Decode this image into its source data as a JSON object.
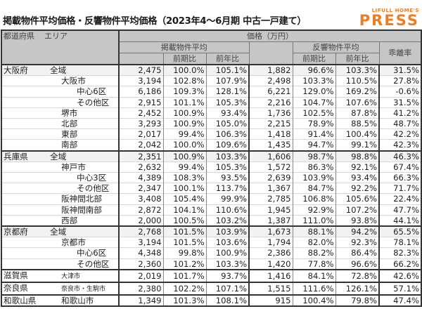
{
  "title": "掲載物件平均価格・反響物件平均価格（2023年4～6月期 中古一戸建て）",
  "logo": {
    "line1": "LIFULL HOME'S",
    "line2": "PRESS",
    "color": "#ef7d22"
  },
  "header": {
    "pref": "都道府県",
    "area": "エリア",
    "price_group": "価格（万円）",
    "listing_avg": "掲載物件平均",
    "response_avg": "反響物件平均",
    "gap_rate": "乖離率",
    "qoq": "前期比",
    "yoy": "前年比"
  },
  "rows": [
    {
      "pref": "大阪府",
      "area": "全域",
      "level": 0,
      "lp": "2,475",
      "lq": "100.0%",
      "ly": "105.1%",
      "rp": "1,882",
      "rq": "96.6%",
      "ry": "103.3%",
      "gap": "31.5%"
    },
    {
      "pref": "",
      "area": "大阪市",
      "level": 1,
      "lp": "3,194",
      "lq": "102.8%",
      "ly": "107.9%",
      "rp": "2,498",
      "rq": "103.3%",
      "ry": "110.5%",
      "gap": "27.8%"
    },
    {
      "pref": "",
      "area": "中心6区",
      "level": 2,
      "lp": "6,186",
      "lq": "109.3%",
      "ly": "128.1%",
      "rp": "6,221",
      "rq": "129.0%",
      "ry": "169.2%",
      "gap": "-0.6%"
    },
    {
      "pref": "",
      "area": "その他区",
      "level": 2,
      "lp": "2,915",
      "lq": "101.1%",
      "ly": "105.3%",
      "rp": "2,216",
      "rq": "104.7%",
      "ry": "107.6%",
      "gap": "31.5%"
    },
    {
      "pref": "",
      "area": "堺市",
      "level": 1,
      "lp": "2,452",
      "lq": "100.9%",
      "ly": "93.4%",
      "rp": "1,736",
      "rq": "102.5%",
      "ry": "87.8%",
      "gap": "41.2%"
    },
    {
      "pref": "",
      "area": "北部",
      "level": 1,
      "lp": "3,293",
      "lq": "100.9%",
      "ly": "105.0%",
      "rp": "2,215",
      "rq": "78.9%",
      "ry": "88.5%",
      "gap": "48.7%"
    },
    {
      "pref": "",
      "area": "東部",
      "level": 1,
      "lp": "2,017",
      "lq": "99.4%",
      "ly": "106.3%",
      "rp": "1,418",
      "rq": "91.4%",
      "ry": "100.4%",
      "gap": "42.2%"
    },
    {
      "pref": "",
      "area": "南部",
      "level": 1,
      "lp": "2,042",
      "lq": "100.0%",
      "ly": "109.6%",
      "rp": "1,435",
      "rq": "94.7%",
      "ry": "99.1%",
      "gap": "42.3%"
    },
    {
      "pref": "兵庫県",
      "area": "全域",
      "level": 0,
      "lp": "2,351",
      "lq": "100.9%",
      "ly": "103.3%",
      "rp": "1,606",
      "rq": "98.7%",
      "ry": "98.8%",
      "gap": "46.3%"
    },
    {
      "pref": "",
      "area": "神戸市",
      "level": 1,
      "lp": "2,632",
      "lq": "99.4%",
      "ly": "105.3%",
      "rp": "1,572",
      "rq": "86.3%",
      "ry": "92.1%",
      "gap": "67.4%"
    },
    {
      "pref": "",
      "area": "中心3区",
      "level": 2,
      "lp": "4,389",
      "lq": "108.3%",
      "ly": "93.5%",
      "rp": "2,639",
      "rq": "103.9%",
      "ry": "93.4%",
      "gap": "66.3%"
    },
    {
      "pref": "",
      "area": "その他区",
      "level": 2,
      "lp": "2,347",
      "lq": "100.1%",
      "ly": "113.7%",
      "rp": "1,367",
      "rq": "84.7%",
      "ry": "92.2%",
      "gap": "71.7%"
    },
    {
      "pref": "",
      "area": "阪神間北部",
      "level": 1,
      "lp": "3,408",
      "lq": "105.4%",
      "ly": "99.9%",
      "rp": "2,785",
      "rq": "106.8%",
      "ry": "105.6%",
      "gap": "22.4%"
    },
    {
      "pref": "",
      "area": "阪神間南部",
      "level": 1,
      "lp": "2,872",
      "lq": "104.1%",
      "ly": "110.6%",
      "rp": "1,945",
      "rq": "92.9%",
      "ry": "107.2%",
      "gap": "47.7%"
    },
    {
      "pref": "",
      "area": "西部",
      "level": 1,
      "lp": "2,000",
      "lq": "100.5%",
      "ly": "103.2%",
      "rp": "1,387",
      "rq": "111.0%",
      "ry": "93.8%",
      "gap": "44.1%"
    },
    {
      "pref": "京都府",
      "area": "全域",
      "level": 0,
      "lp": "2,768",
      "lq": "101.5%",
      "ly": "103.9%",
      "rp": "1,673",
      "rq": "88.1%",
      "ry": "94.2%",
      "gap": "65.5%"
    },
    {
      "pref": "",
      "area": "京都市",
      "level": 1,
      "lp": "3,194",
      "lq": "101.5%",
      "ly": "103.6%",
      "rp": "1,794",
      "rq": "82.0%",
      "ry": "92.3%",
      "gap": "78.1%"
    },
    {
      "pref": "",
      "area": "中心6区",
      "level": 2,
      "lp": "4,348",
      "lq": "99.8%",
      "ly": "100.9%",
      "rp": "2,386",
      "rq": "88.2%",
      "ry": "86.4%",
      "gap": "82.3%"
    },
    {
      "pref": "",
      "area": "その他区",
      "level": 2,
      "lp": "2,360",
      "lq": "101.2%",
      "ly": "103.3%",
      "rp": "1,420",
      "rq": "77.8%",
      "ry": "96.6%",
      "gap": "66.2%"
    },
    {
      "pref": "滋賀県",
      "area": "大津市",
      "level": 3,
      "lp": "2,019",
      "lq": "101.7%",
      "ly": "93.7%",
      "rp": "1,416",
      "rq": "84.1%",
      "ry": "72.8%",
      "gap": "42.6%"
    },
    {
      "pref": "奈良県",
      "area": "奈良市・生駒市",
      "level": 3,
      "lp": "2,380",
      "lq": "102.2%",
      "ly": "107.1%",
      "rp": "1,515",
      "rq": "111.6%",
      "ry": "126.1%",
      "gap": "57.1%"
    },
    {
      "pref": "和歌山県",
      "area": "和歌山市",
      "level": 1,
      "lp": "1,349",
      "lq": "101.3%",
      "ly": "108.1%",
      "rp": "915",
      "rq": "100.4%",
      "ry": "79.8%",
      "gap": "47.4%"
    }
  ]
}
